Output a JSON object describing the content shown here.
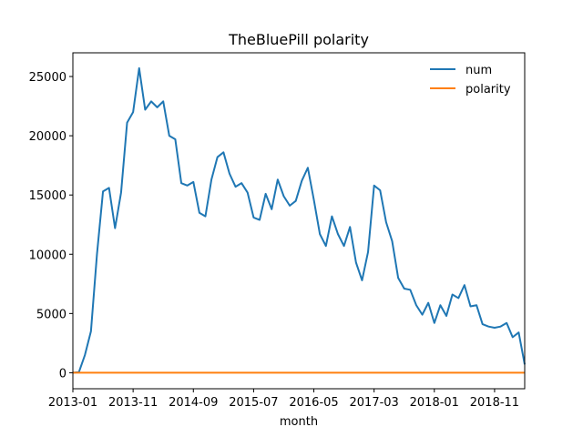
{
  "chart_data": {
    "type": "line",
    "title": "TheBluePill polarity",
    "xlabel": "month",
    "ylabel": "",
    "x_start": "2013-01",
    "x_tick_labels": [
      "2013-01",
      "2013-11",
      "2014-09",
      "2015-07",
      "2016-05",
      "2017-03",
      "2018-01",
      "2018-11"
    ],
    "y_tick_labels": [
      "0",
      "5000",
      "10000",
      "15000",
      "20000",
      "25000"
    ],
    "ylim": [
      -1350,
      27000
    ],
    "legend_position": "upper-right",
    "series": [
      {
        "name": "num",
        "color": "#1f77b4",
        "values": [
          0,
          50,
          1500,
          3500,
          10000,
          15300,
          15600,
          12200,
          15200,
          21100,
          22000,
          25700,
          22200,
          22900,
          22400,
          22900,
          20000,
          19700,
          16000,
          15800,
          16100,
          13500,
          13200,
          16300,
          18200,
          18600,
          16800,
          15700,
          16000,
          15200,
          13100,
          12900,
          15100,
          13800,
          16300,
          14900,
          14100,
          14500,
          16200,
          17300,
          14600,
          11700,
          10700,
          13200,
          11700,
          10700,
          12300,
          9300,
          7800,
          10200,
          15800,
          15400,
          12700,
          11100,
          8000,
          7100,
          7000,
          5700,
          4900,
          5900,
          4200,
          5700,
          4800,
          6600,
          6300,
          7400,
          5600,
          5700,
          4100,
          3900,
          3800,
          3900,
          4200,
          3000,
          3400,
          700
        ]
      },
      {
        "name": "polarity",
        "color": "#ff7f0e",
        "values": [
          0,
          0,
          0,
          0,
          0,
          0,
          0,
          0,
          0,
          0,
          0,
          0,
          0,
          0,
          0,
          0,
          0,
          0,
          0,
          0,
          0,
          0,
          0,
          0,
          0,
          0,
          0,
          0,
          0,
          0,
          0,
          0,
          0,
          0,
          0,
          0,
          0,
          0,
          0,
          0,
          0,
          0,
          0,
          0,
          0,
          0,
          0,
          0,
          0,
          0,
          0,
          0,
          0,
          0,
          0,
          0,
          0,
          0,
          0,
          0,
          0,
          0,
          0,
          0,
          0,
          0,
          0,
          0,
          0,
          0,
          0,
          0,
          0,
          0,
          0,
          0
        ]
      }
    ]
  }
}
